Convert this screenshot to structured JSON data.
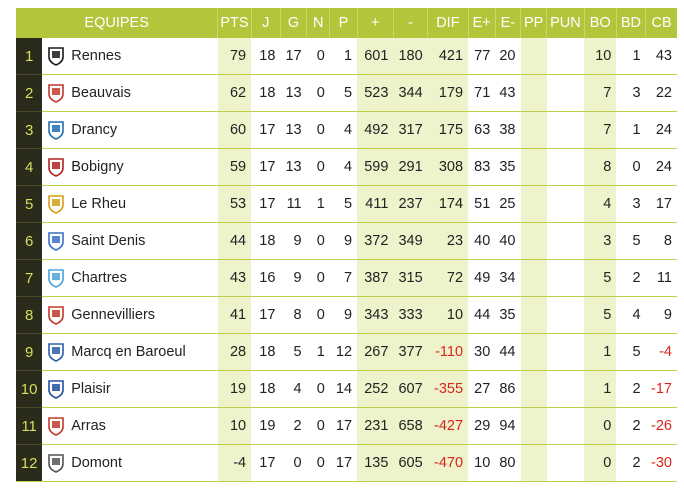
{
  "headers": [
    "EQUIPES",
    "PTS",
    "J",
    "G",
    "N",
    "P",
    "+",
    "-",
    "DIF",
    "E+",
    "E-",
    "PP",
    "PUN",
    "BO",
    "BD",
    "CB"
  ],
  "rows": [
    {
      "rank": "1",
      "team": "Rennes",
      "logo": "rennes-logo",
      "logo_color": "#1a1a1a",
      "pts": "79",
      "j": "18",
      "g": "17",
      "n": "0",
      "p": "1",
      "plus": "601",
      "minus": "180",
      "dif": "421",
      "eplus": "77",
      "eminus": "20",
      "pp": "",
      "pun": "",
      "bo": "10",
      "bd": "1",
      "cb": "43"
    },
    {
      "rank": "2",
      "team": "Beauvais",
      "logo": "beauvais-logo",
      "logo_color": "#c0392b",
      "pts": "62",
      "j": "18",
      "g": "13",
      "n": "0",
      "p": "5",
      "plus": "523",
      "minus": "344",
      "dif": "179",
      "eplus": "71",
      "eminus": "43",
      "pp": "",
      "pun": "",
      "bo": "7",
      "bd": "3",
      "cb": "22"
    },
    {
      "rank": "3",
      "team": "Drancy",
      "logo": "drancy-logo",
      "logo_color": "#1f6fb2",
      "pts": "60",
      "j": "17",
      "g": "13",
      "n": "0",
      "p": "4",
      "plus": "492",
      "minus": "317",
      "dif": "175",
      "eplus": "63",
      "eminus": "38",
      "pp": "",
      "pun": "",
      "bo": "7",
      "bd": "1",
      "cb": "24"
    },
    {
      "rank": "4",
      "team": "Bobigny",
      "logo": "bobigny-logo",
      "logo_color": "#b22222",
      "pts": "59",
      "j": "17",
      "g": "13",
      "n": "0",
      "p": "4",
      "plus": "599",
      "minus": "291",
      "dif": "308",
      "eplus": "83",
      "eminus": "35",
      "pp": "",
      "pun": "",
      "bo": "8",
      "bd": "0",
      "cb": "24"
    },
    {
      "rank": "5",
      "team": "Le Rheu",
      "logo": "le-rheu-logo",
      "logo_color": "#d4a017",
      "pts": "53",
      "j": "17",
      "g": "11",
      "n": "1",
      "p": "5",
      "plus": "411",
      "minus": "237",
      "dif": "174",
      "eplus": "51",
      "eminus": "25",
      "pp": "",
      "pun": "",
      "bo": "4",
      "bd": "3",
      "cb": "17"
    },
    {
      "rank": "6",
      "team": "Saint Denis",
      "logo": "saint-denis-logo",
      "logo_color": "#3a6fc4",
      "pts": "44",
      "j": "18",
      "g": "9",
      "n": "0",
      "p": "9",
      "plus": "372",
      "minus": "349",
      "dif": "23",
      "eplus": "40",
      "eminus": "40",
      "pp": "",
      "pun": "",
      "bo": "3",
      "bd": "5",
      "cb": "8"
    },
    {
      "rank": "7",
      "team": "Chartres",
      "logo": "chartres-logo",
      "logo_color": "#4aa3d9",
      "pts": "43",
      "j": "16",
      "g": "9",
      "n": "0",
      "p": "7",
      "plus": "387",
      "minus": "315",
      "dif": "72",
      "eplus": "49",
      "eminus": "34",
      "pp": "",
      "pun": "",
      "bo": "5",
      "bd": "2",
      "cb": "11"
    },
    {
      "rank": "8",
      "team": "Gennevilliers",
      "logo": "gennevilliers-logo",
      "logo_color": "#c0392b",
      "pts": "41",
      "j": "17",
      "g": "8",
      "n": "0",
      "p": "9",
      "plus": "343",
      "minus": "333",
      "dif": "10",
      "eplus": "44",
      "eminus": "35",
      "pp": "",
      "pun": "",
      "bo": "5",
      "bd": "4",
      "cb": "9"
    },
    {
      "rank": "9",
      "team": "Marcq en Baroeul",
      "logo": "marcq-logo",
      "logo_color": "#2c5fa8",
      "pts": "28",
      "j": "18",
      "g": "5",
      "n": "1",
      "p": "12",
      "plus": "267",
      "minus": "377",
      "dif": "-110",
      "eplus": "30",
      "eminus": "44",
      "pp": "",
      "pun": "",
      "bo": "1",
      "bd": "5",
      "cb": "-4"
    },
    {
      "rank": "10",
      "team": "Plaisir",
      "logo": "plaisir-logo",
      "logo_color": "#1f4fa0",
      "pts": "19",
      "j": "18",
      "g": "4",
      "n": "0",
      "p": "14",
      "plus": "252",
      "minus": "607",
      "dif": "-355",
      "eplus": "27",
      "eminus": "86",
      "pp": "",
      "pun": "",
      "bo": "1",
      "bd": "2",
      "cb": "-17"
    },
    {
      "rank": "11",
      "team": "Arras",
      "logo": "arras-logo",
      "logo_color": "#c0392b",
      "pts": "10",
      "j": "19",
      "g": "2",
      "n": "0",
      "p": "17",
      "plus": "231",
      "minus": "658",
      "dif": "-427",
      "eplus": "29",
      "eminus": "94",
      "pp": "",
      "pun": "",
      "bo": "0",
      "bd": "2",
      "cb": "-26"
    },
    {
      "rank": "12",
      "team": "Domont",
      "logo": "domont-logo",
      "logo_color": "#555555",
      "pts": "-4",
      "j": "17",
      "g": "0",
      "n": "0",
      "p": "17",
      "plus": "135",
      "minus": "605",
      "dif": "-470",
      "eplus": "10",
      "eminus": "80",
      "pp": "",
      "pun": "",
      "bo": "0",
      "bd": "2",
      "cb": "-30"
    }
  ],
  "colors": {
    "header": "#b3c53a",
    "rank_bg": "#2b2b1c",
    "rank_text": "#d6df5e",
    "negative": "#d9261c",
    "shaded": "#eef3cc"
  }
}
